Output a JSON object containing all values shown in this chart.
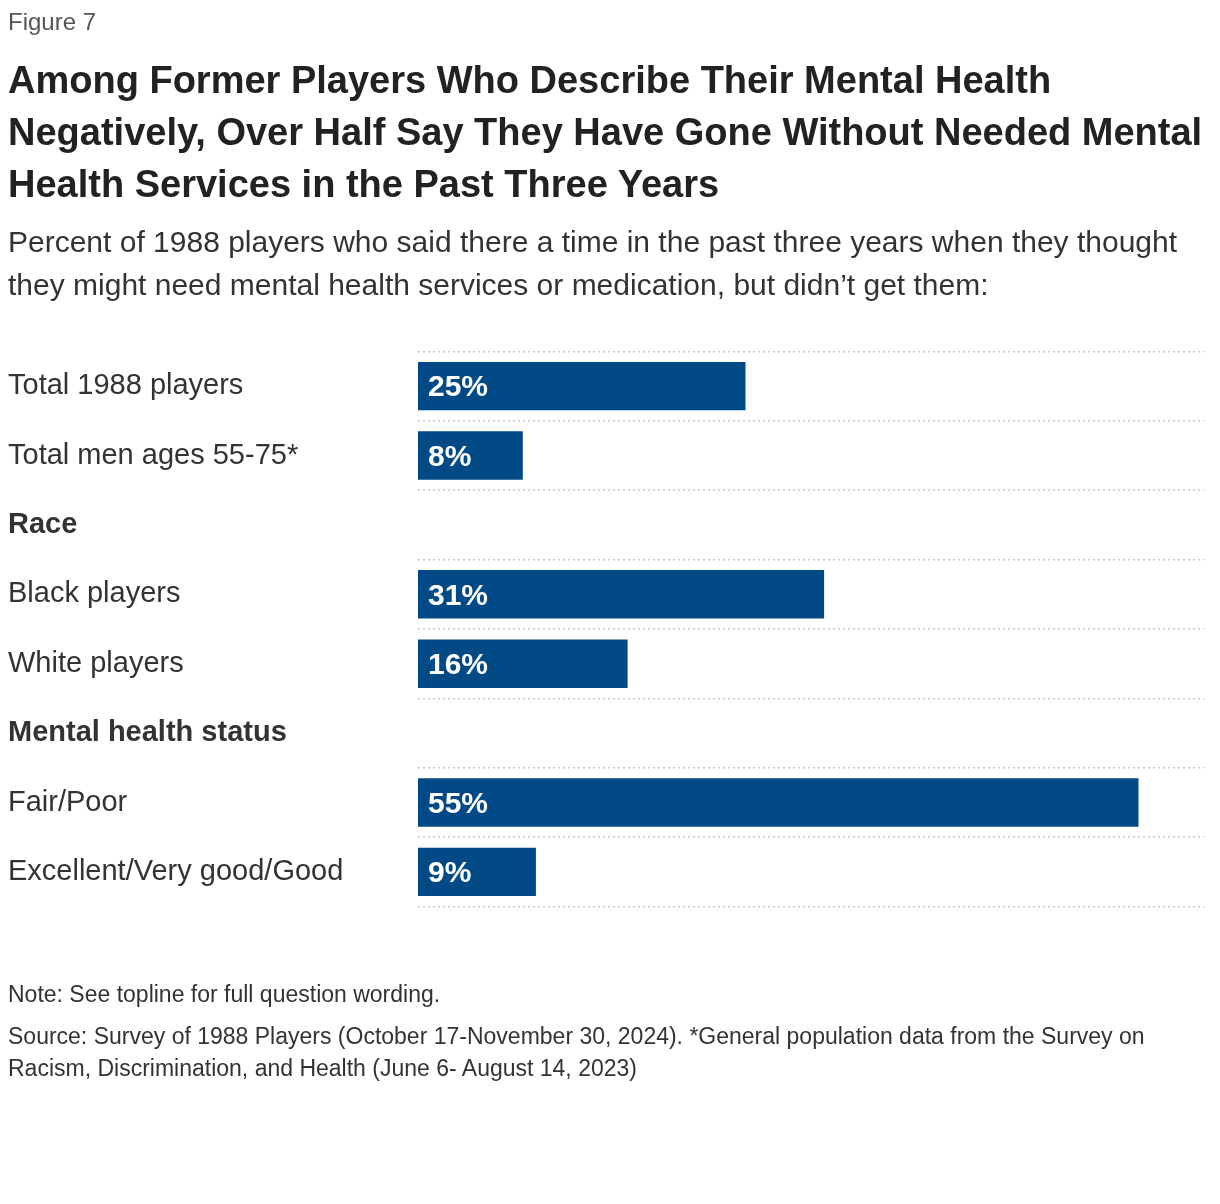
{
  "chart_data": {
    "type": "bar",
    "orientation": "horizontal",
    "title": "Among Former Players Who Describe Their Mental Health Negatively, Over Half Say They Have Gone Without Needed Mental Health Services in the Past Three Years",
    "subtitle": "Percent of 1988 players who said there a time in the past three years when they thought they might need mental health services or medication, but didn’t get them:",
    "categories": [
      "Total 1988 players",
      "Total men ages 55-75*",
      "Race",
      "Black players",
      "White players",
      "Mental health status",
      "Fair/Poor",
      "Excellent/Very good/Good"
    ],
    "values": [
      25,
      8,
      null,
      31,
      16,
      null,
      55,
      9
    ],
    "color": "#024a86",
    "value_labels": [
      "25%",
      "8%",
      null,
      "31%",
      "16%",
      null,
      "55%",
      "9%"
    ],
    "grid": "y",
    "tick_labels": "y",
    "annotations": [
      "Figure 7",
      "Note: See topline for full question wording.",
      "Source: Survey of 1988 Players (October 17-November 30, 2024). *General population data from the Survey on Racism, Discrimination, and Health (June 6- August 14, 2023)"
    ]
  }
}
